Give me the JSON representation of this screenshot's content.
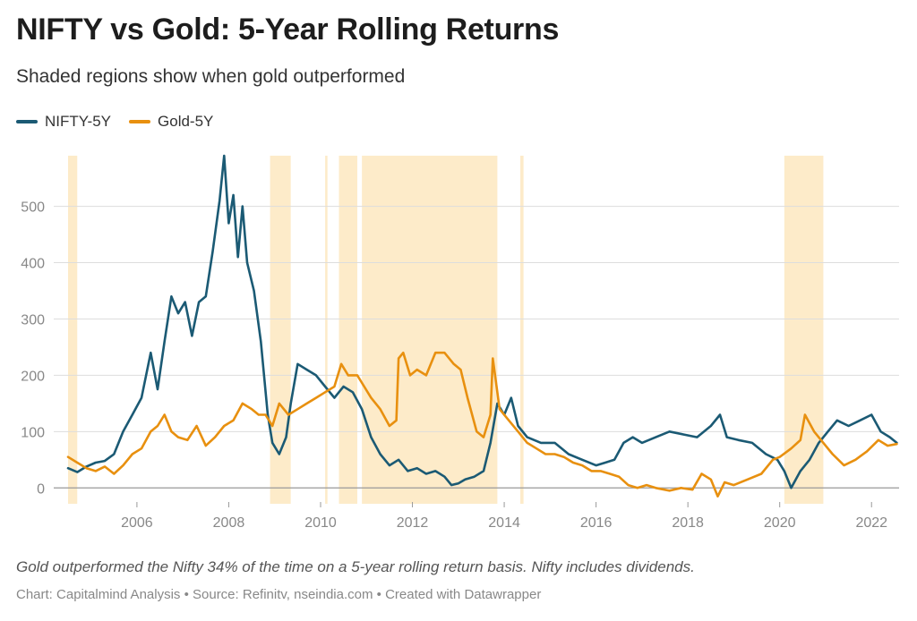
{
  "title": "NIFTY vs Gold: 5-Year Rolling Returns",
  "subtitle": "Shaded regions show when gold outperformed",
  "legend": [
    {
      "label": "NIFTY-5Y",
      "color": "#1b5a74"
    },
    {
      "label": "Gold-5Y",
      "color": "#e8900f"
    }
  ],
  "note": "Gold outperformed the Nifty 34% of the time on a 5-year rolling return basis. Nifty includes dividends.",
  "credit": "Chart: Capitalmind Analysis • Source: Refinitv, nseindia.com • Created with Datawrapper",
  "colors": {
    "shade": "#fdebc9",
    "grid": "#dddddd",
    "axis": "#999999"
  },
  "chart_data": {
    "type": "line",
    "xlim": [
      2004.5,
      2022.6
    ],
    "ylim": [
      -25,
      590
    ],
    "x_ticks": [
      2006,
      2008,
      2010,
      2012,
      2014,
      2016,
      2018,
      2020,
      2022
    ],
    "y_ticks": [
      0,
      100,
      200,
      300,
      400,
      500
    ],
    "grid": true,
    "legend_position": "top-left",
    "shaded_regions": [
      [
        2004.5,
        2004.7
      ],
      [
        2008.9,
        2009.35
      ],
      [
        2010.1,
        2010.15
      ],
      [
        2010.4,
        2010.8
      ],
      [
        2010.9,
        2013.85
      ],
      [
        2014.35,
        2014.42
      ],
      [
        2020.1,
        2020.95
      ]
    ],
    "series": [
      {
        "name": "NIFTY-5Y",
        "color": "#1b5a74",
        "points": [
          [
            2004.5,
            35
          ],
          [
            2004.7,
            28
          ],
          [
            2004.9,
            38
          ],
          [
            2005.1,
            45
          ],
          [
            2005.3,
            48
          ],
          [
            2005.5,
            60
          ],
          [
            2005.7,
            100
          ],
          [
            2005.9,
            130
          ],
          [
            2006.1,
            160
          ],
          [
            2006.3,
            240
          ],
          [
            2006.45,
            175
          ],
          [
            2006.6,
            260
          ],
          [
            2006.75,
            340
          ],
          [
            2006.9,
            310
          ],
          [
            2007.05,
            330
          ],
          [
            2007.2,
            270
          ],
          [
            2007.35,
            330
          ],
          [
            2007.5,
            340
          ],
          [
            2007.65,
            420
          ],
          [
            2007.8,
            510
          ],
          [
            2007.9,
            590
          ],
          [
            2008.0,
            470
          ],
          [
            2008.1,
            520
          ],
          [
            2008.2,
            410
          ],
          [
            2008.3,
            500
          ],
          [
            2008.4,
            400
          ],
          [
            2008.55,
            350
          ],
          [
            2008.7,
            260
          ],
          [
            2008.85,
            130
          ],
          [
            2008.95,
            80
          ],
          [
            2009.1,
            60
          ],
          [
            2009.25,
            90
          ],
          [
            2009.35,
            150
          ],
          [
            2009.5,
            220
          ],
          [
            2009.7,
            210
          ],
          [
            2009.9,
            200
          ],
          [
            2010.1,
            180
          ],
          [
            2010.3,
            160
          ],
          [
            2010.5,
            180
          ],
          [
            2010.7,
            170
          ],
          [
            2010.9,
            140
          ],
          [
            2011.1,
            90
          ],
          [
            2011.3,
            60
          ],
          [
            2011.5,
            40
          ],
          [
            2011.7,
            50
          ],
          [
            2011.9,
            30
          ],
          [
            2012.1,
            35
          ],
          [
            2012.3,
            25
          ],
          [
            2012.5,
            30
          ],
          [
            2012.7,
            20
          ],
          [
            2012.85,
            5
          ],
          [
            2013.0,
            8
          ],
          [
            2013.15,
            15
          ],
          [
            2013.35,
            20
          ],
          [
            2013.55,
            30
          ],
          [
            2013.7,
            80
          ],
          [
            2013.85,
            150
          ],
          [
            2014.0,
            130
          ],
          [
            2014.15,
            160
          ],
          [
            2014.3,
            110
          ],
          [
            2014.5,
            90
          ],
          [
            2014.8,
            80
          ],
          [
            2015.1,
            80
          ],
          [
            2015.4,
            60
          ],
          [
            2015.7,
            50
          ],
          [
            2016.0,
            40
          ],
          [
            2016.2,
            45
          ],
          [
            2016.4,
            50
          ],
          [
            2016.6,
            80
          ],
          [
            2016.8,
            90
          ],
          [
            2017.0,
            80
          ],
          [
            2017.3,
            90
          ],
          [
            2017.6,
            100
          ],
          [
            2017.9,
            95
          ],
          [
            2018.2,
            90
          ],
          [
            2018.5,
            110
          ],
          [
            2018.7,
            130
          ],
          [
            2018.85,
            90
          ],
          [
            2019.1,
            85
          ],
          [
            2019.4,
            80
          ],
          [
            2019.7,
            60
          ],
          [
            2019.95,
            50
          ],
          [
            2020.1,
            30
          ],
          [
            2020.25,
            0
          ],
          [
            2020.45,
            30
          ],
          [
            2020.65,
            50
          ],
          [
            2020.85,
            80
          ],
          [
            2021.05,
            100
          ],
          [
            2021.25,
            120
          ],
          [
            2021.5,
            110
          ],
          [
            2021.75,
            120
          ],
          [
            2022.0,
            130
          ],
          [
            2022.2,
            100
          ],
          [
            2022.4,
            90
          ],
          [
            2022.55,
            80
          ]
        ]
      },
      {
        "name": "Gold-5Y",
        "color": "#e8900f",
        "points": [
          [
            2004.5,
            55
          ],
          [
            2004.7,
            45
          ],
          [
            2004.9,
            35
          ],
          [
            2005.1,
            30
          ],
          [
            2005.3,
            38
          ],
          [
            2005.5,
            25
          ],
          [
            2005.7,
            40
          ],
          [
            2005.9,
            60
          ],
          [
            2006.1,
            70
          ],
          [
            2006.3,
            100
          ],
          [
            2006.45,
            110
          ],
          [
            2006.6,
            130
          ],
          [
            2006.75,
            100
          ],
          [
            2006.9,
            90
          ],
          [
            2007.1,
            85
          ],
          [
            2007.3,
            110
          ],
          [
            2007.5,
            75
          ],
          [
            2007.7,
            90
          ],
          [
            2007.9,
            110
          ],
          [
            2008.1,
            120
          ],
          [
            2008.3,
            150
          ],
          [
            2008.5,
            140
          ],
          [
            2008.65,
            130
          ],
          [
            2008.8,
            130
          ],
          [
            2008.95,
            110
          ],
          [
            2009.1,
            150
          ],
          [
            2009.3,
            130
          ],
          [
            2009.5,
            140
          ],
          [
            2009.7,
            150
          ],
          [
            2009.9,
            160
          ],
          [
            2010.1,
            170
          ],
          [
            2010.3,
            180
          ],
          [
            2010.45,
            220
          ],
          [
            2010.6,
            200
          ],
          [
            2010.8,
            200
          ],
          [
            2010.95,
            180
          ],
          [
            2011.1,
            160
          ],
          [
            2011.3,
            140
          ],
          [
            2011.5,
            110
          ],
          [
            2011.65,
            120
          ],
          [
            2011.7,
            230
          ],
          [
            2011.8,
            240
          ],
          [
            2011.95,
            200
          ],
          [
            2012.1,
            210
          ],
          [
            2012.3,
            200
          ],
          [
            2012.5,
            240
          ],
          [
            2012.7,
            240
          ],
          [
            2012.9,
            220
          ],
          [
            2013.05,
            210
          ],
          [
            2013.2,
            160
          ],
          [
            2013.4,
            100
          ],
          [
            2013.55,
            90
          ],
          [
            2013.7,
            130
          ],
          [
            2013.75,
            230
          ],
          [
            2013.9,
            140
          ],
          [
            2014.1,
            120
          ],
          [
            2014.3,
            100
          ],
          [
            2014.5,
            80
          ],
          [
            2014.7,
            70
          ],
          [
            2014.9,
            60
          ],
          [
            2015.1,
            60
          ],
          [
            2015.3,
            55
          ],
          [
            2015.5,
            45
          ],
          [
            2015.7,
            40
          ],
          [
            2015.9,
            30
          ],
          [
            2016.1,
            30
          ],
          [
            2016.3,
            25
          ],
          [
            2016.5,
            20
          ],
          [
            2016.7,
            5
          ],
          [
            2016.9,
            0
          ],
          [
            2017.1,
            5
          ],
          [
            2017.3,
            0
          ],
          [
            2017.6,
            -5
          ],
          [
            2017.85,
            0
          ],
          [
            2018.1,
            -3
          ],
          [
            2018.3,
            25
          ],
          [
            2018.5,
            15
          ],
          [
            2018.65,
            -15
          ],
          [
            2018.8,
            10
          ],
          [
            2019.0,
            5
          ],
          [
            2019.3,
            15
          ],
          [
            2019.6,
            25
          ],
          [
            2019.85,
            50
          ],
          [
            2020.0,
            55
          ],
          [
            2020.25,
            70
          ],
          [
            2020.45,
            85
          ],
          [
            2020.55,
            130
          ],
          [
            2020.75,
            100
          ],
          [
            2020.95,
            80
          ],
          [
            2021.15,
            60
          ],
          [
            2021.4,
            40
          ],
          [
            2021.65,
            50
          ],
          [
            2021.9,
            65
          ],
          [
            2022.15,
            85
          ],
          [
            2022.35,
            75
          ],
          [
            2022.55,
            78
          ]
        ]
      }
    ]
  }
}
